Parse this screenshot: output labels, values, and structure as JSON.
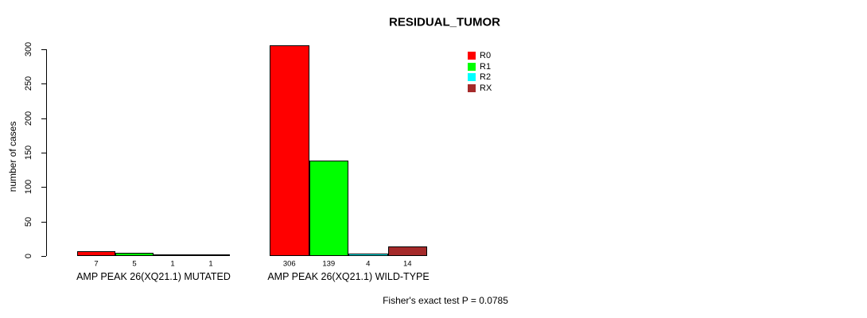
{
  "chart_data": {
    "type": "bar",
    "title": "RESIDUAL_TUMOR",
    "ylabel": "number of cases",
    "xlabel": "",
    "ylim": [
      0,
      300
    ],
    "yticks": [
      0,
      50,
      100,
      150,
      200,
      250,
      300
    ],
    "grid": false,
    "legend_position": "top-right-inside",
    "categories": [
      "AMP PEAK 26(XQ21.1) MUTATED",
      "AMP PEAK 26(XQ21.1) WILD-TYPE"
    ],
    "series": [
      {
        "name": "R0",
        "color": "#ff0000",
        "values": [
          7,
          306
        ]
      },
      {
        "name": "R1",
        "color": "#00ff00",
        "values": [
          5,
          139
        ]
      },
      {
        "name": "R2",
        "color": "#00ffff",
        "values": [
          1,
          4
        ]
      },
      {
        "name": "RX",
        "color": "#a52a2a",
        "values": [
          1,
          14
        ]
      }
    ],
    "bar_value_labels": [
      [
        7,
        5,
        1,
        1
      ],
      [
        306,
        139,
        4,
        14
      ]
    ],
    "annotation": "Fisher's exact test P = 0.0785"
  }
}
